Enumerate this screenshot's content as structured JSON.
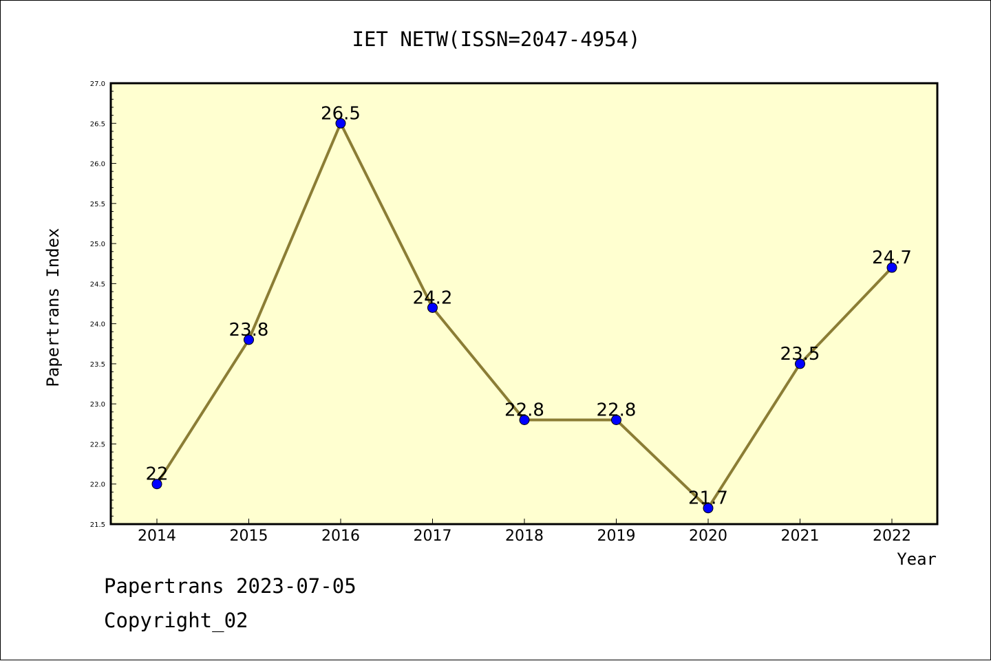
{
  "chart_data": {
    "type": "line",
    "title": "IET NETW(ISSN=2047-4954)",
    "xlabel": "Year",
    "ylabel": "Papertrans Index",
    "categories": [
      "2014",
      "2015",
      "2016",
      "2017",
      "2018",
      "2019",
      "2020",
      "2021",
      "2022"
    ],
    "values": [
      22,
      23.8,
      26.5,
      24.2,
      22.8,
      22.8,
      21.7,
      23.5,
      24.7
    ],
    "data_labels": [
      "22",
      "23.8",
      "26.5",
      "24.2",
      "22.8",
      "22.8",
      "21.7",
      "23.5",
      "24.7"
    ],
    "ylim": [
      21.5,
      27.0
    ],
    "yticks": [
      "21.5",
      "22.0",
      "22.5",
      "23.0",
      "23.5",
      "24.0",
      "24.5",
      "25.0",
      "25.5",
      "26.0",
      "26.5",
      "27.0"
    ],
    "grid": false,
    "legend": "none",
    "colors": {
      "plot_background": "#ffffd0",
      "line": "#8b7d35",
      "marker": "#0000ff"
    }
  },
  "footer": {
    "date_line": "Papertrans 2023-07-05",
    "copyright": "Copyright_02"
  }
}
